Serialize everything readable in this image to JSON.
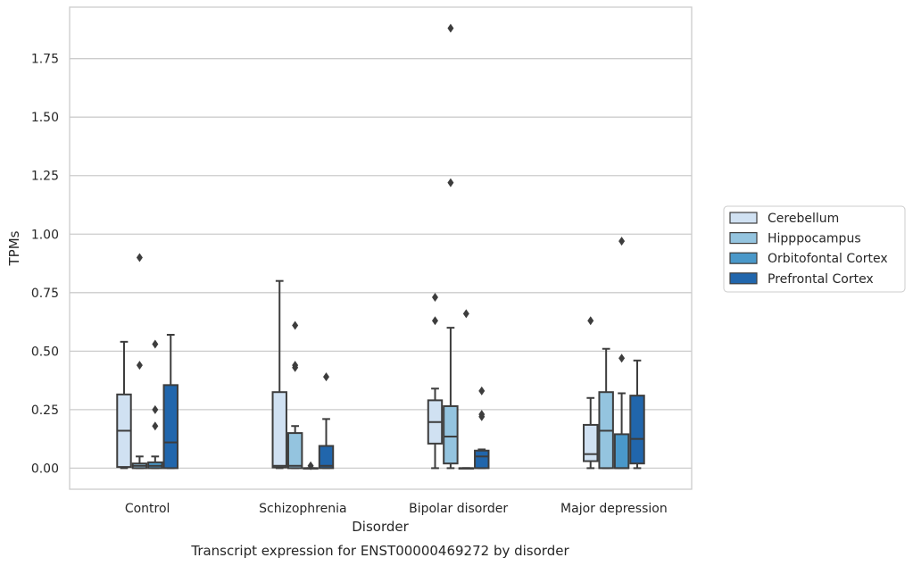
{
  "chart_data": {
    "type": "box",
    "title": "Transcript expression for ENST00000469272 by disorder",
    "xlabel": "Disorder",
    "ylabel": "TPMs",
    "categories": [
      "Control",
      "Schizophrenia",
      "Bipolar disorder",
      "Major depression"
    ],
    "ylim": [
      -0.09,
      1.97
    ],
    "yticks": [
      0.0,
      0.25,
      0.5,
      0.75,
      1.0,
      1.25,
      1.5,
      1.75
    ],
    "ytick_labels": [
      "0.00",
      "0.25",
      "0.50",
      "0.75",
      "1.00",
      "1.25",
      "1.50",
      "1.75"
    ],
    "grid": "horizontal",
    "legend_position": "right",
    "series": [
      {
        "name": "Cerebellum",
        "color": "#d0e1f2",
        "boxes": [
          {
            "whislo": 0.0,
            "q1": 0.005,
            "med": 0.16,
            "q3": 0.315,
            "whishi": 0.54,
            "fliers": []
          },
          {
            "whislo": 0.0,
            "q1": 0.003,
            "med": 0.01,
            "q3": 0.325,
            "whishi": 0.8,
            "fliers": []
          },
          {
            "whislo": 0.0,
            "q1": 0.105,
            "med": 0.197,
            "q3": 0.29,
            "whishi": 0.34,
            "fliers": [
              0.63,
              0.73
            ]
          },
          {
            "whislo": 0.0,
            "q1": 0.03,
            "med": 0.06,
            "q3": 0.185,
            "whishi": 0.3,
            "fliers": [
              0.63
            ]
          }
        ]
      },
      {
        "name": "Hipppocampus",
        "color": "#94c4df",
        "boxes": [
          {
            "whislo": 0.0,
            "q1": 0.0,
            "med": 0.01,
            "q3": 0.02,
            "whishi": 0.05,
            "fliers": [
              0.44,
              0.9
            ]
          },
          {
            "whislo": 0.0,
            "q1": 0.0,
            "med": 0.01,
            "q3": 0.15,
            "whishi": 0.18,
            "fliers": [
              0.43,
              0.44,
              0.61
            ]
          },
          {
            "whislo": 0.0,
            "q1": 0.02,
            "med": 0.135,
            "q3": 0.265,
            "whishi": 0.6,
            "fliers": [
              1.22,
              1.88
            ]
          },
          {
            "whislo": 0.0,
            "q1": 0.0,
            "med": 0.16,
            "q3": 0.325,
            "whishi": 0.51,
            "fliers": []
          }
        ]
      },
      {
        "name": "Orbitofontal Cortex",
        "color": "#4a98c9",
        "boxes": [
          {
            "whislo": 0.0,
            "q1": 0.0,
            "med": 0.01,
            "q3": 0.025,
            "whishi": 0.05,
            "fliers": [
              0.18,
              0.25,
              0.53
            ]
          },
          {
            "whislo": 0.0,
            "q1": 0.0,
            "med": 0.0,
            "q3": 0.0,
            "whishi": 0.0,
            "fliers": [
              0.01
            ]
          },
          {
            "whislo": 0.0,
            "q1": 0.0,
            "med": 0.0,
            "q3": 0.0,
            "whishi": 0.0,
            "fliers": [
              0.66
            ]
          },
          {
            "whislo": 0.0,
            "q1": 0.0,
            "med": 0.0,
            "q3": 0.145,
            "whishi": 0.32,
            "fliers": [
              0.47,
              0.97
            ]
          }
        ]
      },
      {
        "name": "Prefrontal Cortex",
        "color": "#2166ac",
        "boxes": [
          {
            "whislo": 0.0,
            "q1": 0.0,
            "med": 0.11,
            "q3": 0.355,
            "whishi": 0.57,
            "fliers": []
          },
          {
            "whislo": 0.0,
            "q1": 0.0,
            "med": 0.01,
            "q3": 0.095,
            "whishi": 0.21,
            "fliers": [
              0.39
            ]
          },
          {
            "whislo": 0.0,
            "q1": 0.0,
            "med": 0.05,
            "q3": 0.075,
            "whishi": 0.08,
            "fliers": [
              0.22,
              0.23,
              0.33
            ]
          },
          {
            "whislo": 0.0,
            "q1": 0.02,
            "med": 0.125,
            "q3": 0.31,
            "whishi": 0.46,
            "fliers": []
          }
        ]
      }
    ]
  }
}
